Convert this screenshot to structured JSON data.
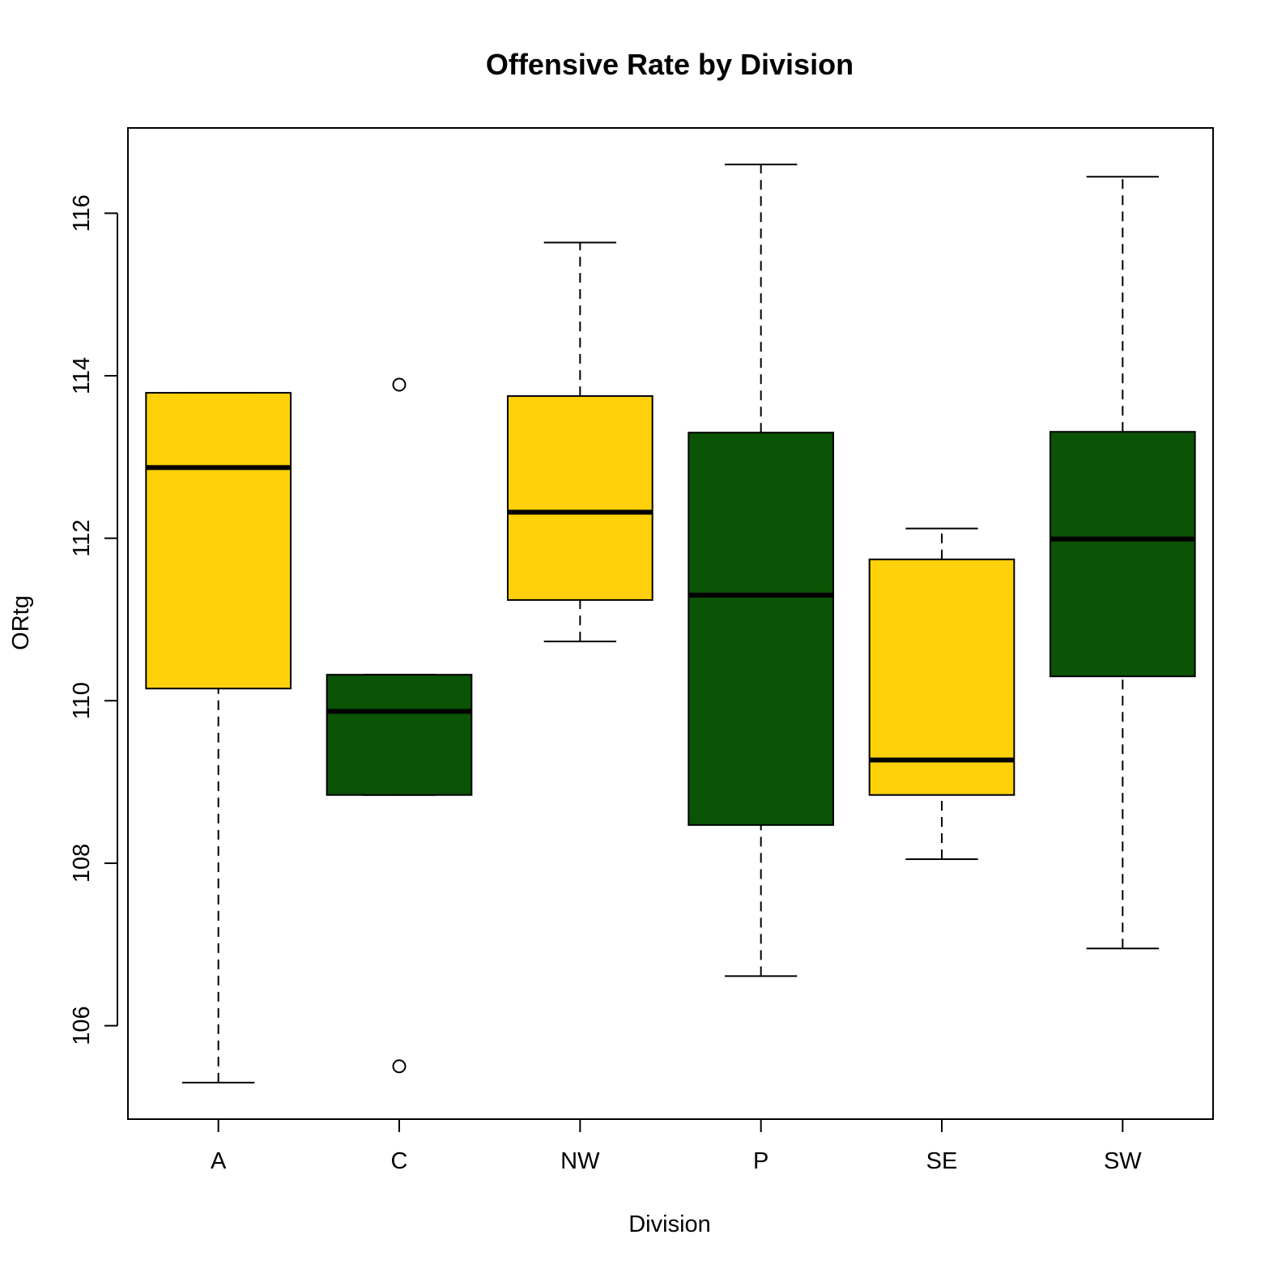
{
  "chart_data": {
    "type": "boxplot",
    "title": "Offensive Rate by Division",
    "xlabel": "Division",
    "ylabel": "ORtg",
    "ylim": [
      104.85,
      117.05
    ],
    "yticks": [
      106,
      108,
      110,
      112,
      114,
      116
    ],
    "colors": {
      "yellow": "#FFD10A",
      "green": "#0B5305",
      "stroke": "#000000",
      "background": "#FFFFFF"
    },
    "categories": [
      "A",
      "C",
      "NW",
      "P",
      "SE",
      "SW"
    ],
    "boxes": [
      {
        "label": "A",
        "color": "yellow",
        "whisker_low": 105.3,
        "q1": 110.15,
        "median": 112.87,
        "q3": 113.79,
        "whisker_high": 113.79,
        "outliers": []
      },
      {
        "label": "C",
        "color": "green",
        "whisker_low": 108.84,
        "q1": 108.84,
        "median": 109.87,
        "q3": 110.32,
        "whisker_high": 110.32,
        "outliers": [
          105.5,
          113.89
        ]
      },
      {
        "label": "NW",
        "color": "yellow",
        "whisker_low": 110.73,
        "q1": 111.24,
        "median": 112.32,
        "q3": 113.75,
        "whisker_high": 115.64,
        "outliers": []
      },
      {
        "label": "P",
        "color": "green",
        "whisker_low": 106.61,
        "q1": 108.47,
        "median": 111.3,
        "q3": 113.3,
        "whisker_high": 116.6,
        "outliers": []
      },
      {
        "label": "SE",
        "color": "yellow",
        "whisker_low": 108.05,
        "q1": 108.84,
        "median": 109.27,
        "q3": 111.74,
        "whisker_high": 112.12,
        "outliers": []
      },
      {
        "label": "SW",
        "color": "green",
        "whisker_low": 106.95,
        "q1": 110.3,
        "median": 111.99,
        "q3": 113.31,
        "whisker_high": 116.45,
        "outliers": []
      }
    ]
  }
}
